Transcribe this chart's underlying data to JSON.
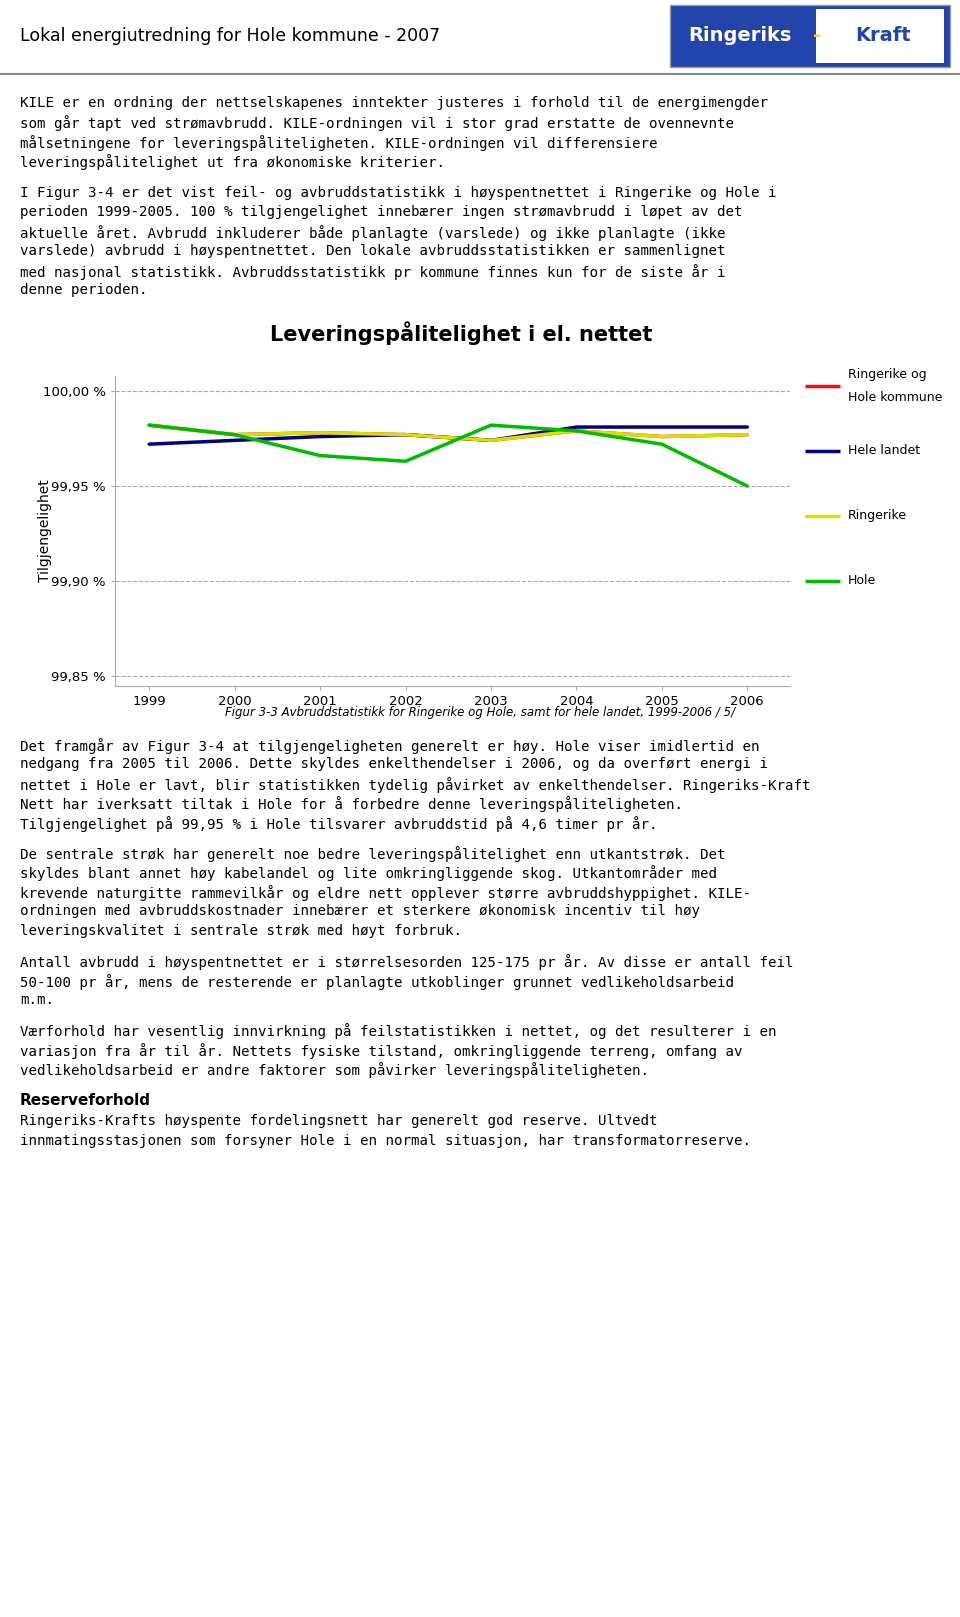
{
  "title": "Leveringspålitelighet i el. nettet",
  "header_title": "Lokal energiutredning for Hole kommune - 2007",
  "ylabel": "Tilgjengelighet",
  "years": [
    1999,
    2000,
    2001,
    2002,
    2003,
    2004,
    2005,
    2006
  ],
  "series_order": [
    "Ringerike og\nHole kommune",
    "Hele landet",
    "Ringerike",
    "Hole"
  ],
  "series": {
    "Ringerike og\nHole kommune": {
      "color": "#EE1111",
      "values": [
        99.982,
        99.977,
        99.978,
        99.977,
        99.974,
        99.979,
        99.976,
        99.977
      ]
    },
    "Hele landet": {
      "color": "#000080",
      "values": [
        99.972,
        99.974,
        99.976,
        99.977,
        99.974,
        99.981,
        99.981,
        99.981
      ]
    },
    "Ringerike": {
      "color": "#DDDD00",
      "values": [
        99.982,
        99.977,
        99.978,
        99.977,
        99.974,
        99.979,
        99.976,
        99.977
      ]
    },
    "Hole": {
      "color": "#00BB00",
      "values": [
        99.982,
        99.977,
        99.966,
        99.963,
        99.982,
        99.979,
        99.972,
        99.95
      ]
    }
  },
  "ylim": [
    99.845,
    100.008
  ],
  "yticks": [
    99.85,
    99.9,
    99.95,
    100.0
  ],
  "ytick_labels": [
    "99,85 %",
    "99,90 %",
    "99,95 %",
    "100,00 %"
  ],
  "background_color": "#FFFFFF",
  "grid_color": "#AAAAAA",
  "body_texts": [
    "KILE er en ordning der nettselskapenes inntekter justeres i forhold til de energimengder",
    "som går tapt ved strømavbrudd. KILE-ordningen vil i stor grad erstatte de ovennevnte",
    "målsetningene for leveringspåliteligheten. KILE-ordningen vil differensiere",
    "leveringspålitelighet ut fra økonomiske kriterier.",
    "",
    "I Figur 3-4 er det vist feil- og avbruddstatistikk i høyspentnettet i Ringerike og Hole i",
    "perioden 1999-2005. 100 % tilgjengelighet innebærer ingen strømavbrudd i løpet av det",
    "aktuelle året. Avbrudd inkluderer både planlagte (varslede) og ikke planlagte (ikke",
    "varslede) avbrudd i høyspentnettet. Den lokale avbruddsstatistikken er sammenlignet",
    "med nasjonal statistikk. Avbruddsstatistikk pr kommune finnes kun for de siste år i",
    "denne perioden."
  ],
  "caption": "Figur 3-3 Avbruddstatistikk for Ringerike og Hole, samt for hele landet, 1999-2006 / 5/",
  "post_texts": [
    "Det framgår av Figur 3-4 at tilgjengeligheten generelt er høy. Hole viser imidlertid en",
    "nedgang fra 2005 til 2006. Dette skyldes enkelthendelser i 2006, og da overført energi i",
    "nettet i Hole er lavt, blir statistikken tydelig påvirket av enkelthendelser. Ringeriks-Kraft",
    "Nett har iverksatt tiltak i Hole for å forbedre denne leveringspåliteligheten.",
    "Tilgjengelighet på 99,95 % i Hole tilsvarer avbruddstid på 4,6 timer pr år.",
    "",
    "De sentrale strøk har generelt noe bedre leveringspålitelighet enn utkantstrøk. Det",
    "skyldes blant annet høy kabelandel og lite omkringliggende skog. Utkantområder med",
    "krevende naturgitte rammevilkår og eldre nett opplever større avbruddshyppighet. KILE-",
    "ordningen med avbruddskostnader innebærer et sterkere økonomisk incentiv til høy",
    "leveringskvalitet i sentrale strøk med høyt forbruk.",
    "",
    "Antall avbrudd i høyspentnettet er i størrelsesorden 125-175 pr år. Av disse er antall feil",
    "50-100 pr år, mens de resterende er planlagte utkoblinger grunnet vedlikeholdsarbeid",
    "m.m.",
    "",
    "Værforhold har vesentlig innvirkning på feilstatistikken i nettet, og det resulterer i en",
    "variasjon fra år til år. Nettets fysiske tilstand, omkringliggende terreng, omfang av",
    "vedlikeholdsarbeid er andre faktorer som påvirker leveringspåliteligheten.",
    "",
    "Reserveforhold",
    "Ringeriks-Krafts høyspente fordelingsnett har generelt god reserve. Ultvedt",
    "innmatingsstasjonen som forsyner Hole i en normal situasjon, har transformatorreserve."
  ],
  "logo_blue": "#2244AA",
  "logo_white": "#FFFFFF",
  "logo_text1": "Ringeriks",
  "logo_dash": "-",
  "logo_text2": "Kraft"
}
